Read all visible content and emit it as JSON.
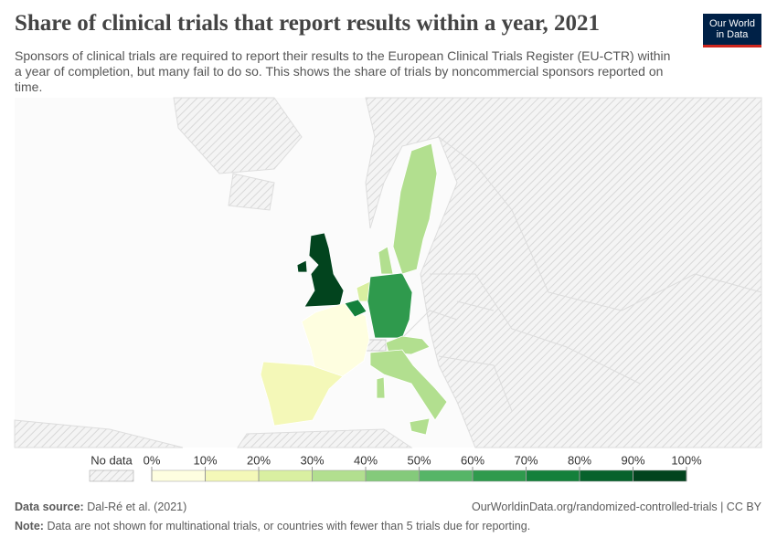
{
  "chart_data": {
    "type": "choropleth",
    "title": "Share of clinical trials that report results within a year, 2021",
    "subtitle": "Sponsors of clinical trials are required to report their results to the European Clinical Trials Register (EU-CTR) within a year of completion, but many fail to do so. This shows the share of trials by noncommercial sponsors reported on time.",
    "logo": [
      "Our World",
      "in Data"
    ],
    "categories": [
      null,
      null,
      null,
      null,
      null,
      null,
      null,
      null,
      null,
      null
    ],
    "values": [
      95,
      5,
      15,
      70,
      25,
      65,
      35,
      35,
      35,
      35
    ],
    "no_data_label": "No data",
    "ticks": [
      {
        "value": 0,
        "label": "0%"
      },
      {
        "value": 10,
        "label": "10%"
      },
      {
        "value": 20,
        "label": "20%"
      },
      {
        "value": 30,
        "label": "30%"
      },
      {
        "value": 40,
        "label": "40%"
      },
      {
        "value": 50,
        "label": "50%"
      },
      {
        "value": 60,
        "label": "60%"
      },
      {
        "value": 70,
        "label": "70%"
      },
      {
        "value": 80,
        "label": "80%"
      },
      {
        "value": 90,
        "label": "90%"
      },
      {
        "value": 100,
        "label": "100%"
      }
    ],
    "colors": [
      "#fefee0",
      "#f4f8b8",
      "#d9efa1",
      "#b2df8f",
      "#84ca7b",
      "#56b567",
      "#2f9a4d",
      "#14803b",
      "#07622c",
      "#02441e"
    ],
    "source_label": "Data source:",
    "source": "Dal-Ré et al. (2021)",
    "url": "OurWorldinData.org/randomized-controlled-trials | CC BY",
    "note_label": "Note:",
    "note": "Data are not shown for multinational trials, or countries with fewer than 5 trials due for reporting."
  }
}
